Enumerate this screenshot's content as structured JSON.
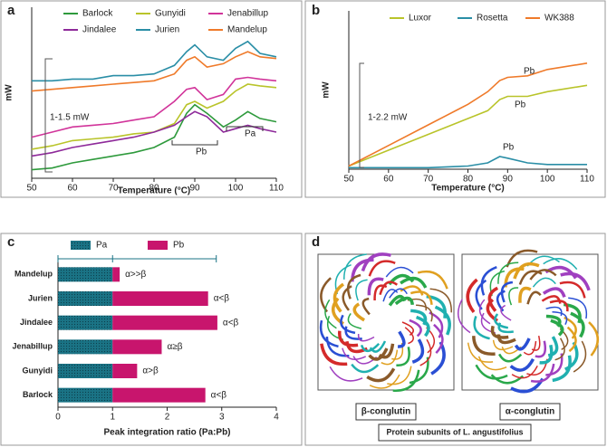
{
  "chart_data": [
    {
      "type": "line",
      "x_label": "Temperature (°C)",
      "y_label": "mW",
      "x": [
        50,
        55,
        60,
        65,
        70,
        75,
        80,
        85,
        88,
        90,
        93,
        97,
        100,
        103,
        106,
        110
      ],
      "xlim": [
        50,
        110
      ],
      "xticks": [
        50,
        60,
        70,
        80,
        90,
        100,
        110
      ],
      "ylim": [
        0,
        100
      ],
      "series": [
        {
          "name": "Barlock",
          "color": "#2e9a3c",
          "values": [
            5,
            6,
            9,
            11,
            13,
            15,
            18,
            24,
            38,
            43,
            38,
            30,
            34,
            39,
            35,
            33
          ]
        },
        {
          "name": "Gunyidi",
          "color": "#b9c42a",
          "values": [
            17,
            19,
            22,
            23,
            24,
            26,
            27,
            32,
            43,
            45,
            41,
            45,
            51,
            55,
            54,
            53
          ]
        },
        {
          "name": "Jenabillup",
          "color": "#d1349a",
          "values": [
            24,
            27,
            30,
            31,
            32,
            34,
            36,
            45,
            52,
            53,
            46,
            49,
            58,
            59,
            58,
            57
          ]
        },
        {
          "name": "Jindalee",
          "color": "#8e2a9a",
          "values": [
            13,
            15,
            18,
            20,
            22,
            24,
            27,
            31,
            36,
            39,
            36,
            27,
            29,
            31,
            29,
            27
          ]
        },
        {
          "name": "Jurien",
          "color": "#2a8ea6",
          "values": [
            57,
            57,
            58,
            58,
            60,
            60,
            61,
            66,
            74,
            78,
            71,
            69,
            76,
            80,
            73,
            71
          ]
        },
        {
          "name": "Mandelup",
          "color": "#ef7a2a",
          "values": [
            51,
            52,
            53,
            54,
            55,
            56,
            57,
            61,
            69,
            71,
            65,
            67,
            71,
            74,
            71,
            70
          ]
        }
      ],
      "annotations": [
        "1-1.5 mW",
        "Pb",
        "Pa"
      ]
    },
    {
      "type": "line",
      "x_label": "Temperature (°C)",
      "y_label": "mW",
      "x": [
        50,
        60,
        70,
        80,
        85,
        88,
        90,
        95,
        100,
        110
      ],
      "xlim": [
        50,
        110
      ],
      "xticks": [
        50,
        60,
        70,
        80,
        90,
        100,
        110
      ],
      "ylim": [
        0,
        100
      ],
      "series": [
        {
          "name": "Luxor",
          "color": "#b9c42a",
          "values": [
            2,
            12,
            22,
            32,
            37,
            44,
            46,
            46,
            49,
            53
          ]
        },
        {
          "name": "Rosetta",
          "color": "#2a8ea6",
          "values": [
            1,
            1,
            1,
            2,
            4,
            8,
            7,
            4,
            3,
            3
          ]
        },
        {
          "name": "WK388",
          "color": "#ef7a2a",
          "values": [
            2,
            15,
            28,
            41,
            49,
            56,
            58,
            59,
            63,
            67
          ]
        }
      ],
      "annotations": [
        "1-2.2 mW",
        "Pb",
        "Pb",
        "Pb"
      ]
    },
    {
      "type": "hbar",
      "x_label": "Peak integration ratio (Pa:Pb)",
      "categories": [
        "Mandelup",
        "Jurien",
        "Jindalee",
        "Jenabillup",
        "Gunyidi",
        "Barlock"
      ],
      "xlim": [
        0,
        4
      ],
      "xticks": [
        0,
        1,
        2,
        3,
        4
      ],
      "series": [
        {
          "name": "Pa",
          "color": "#1a7385",
          "values": [
            1,
            1,
            1,
            1,
            1,
            1
          ]
        },
        {
          "name": "Pb",
          "color": "#c8156d",
          "values": [
            0.13,
            1.75,
            1.92,
            0.9,
            0.45,
            1.7
          ]
        }
      ],
      "annotations": [
        "α>>β",
        "α<β",
        "α<β",
        "α≥β",
        "α>β",
        "α<β"
      ]
    }
  ],
  "panel_labels": [
    "a",
    "b",
    "c",
    "d"
  ],
  "panel_d": {
    "left_label": "β-conglutin",
    "right_label": "α-conglutin",
    "caption": "Protein subunits of L. angustifolius"
  }
}
